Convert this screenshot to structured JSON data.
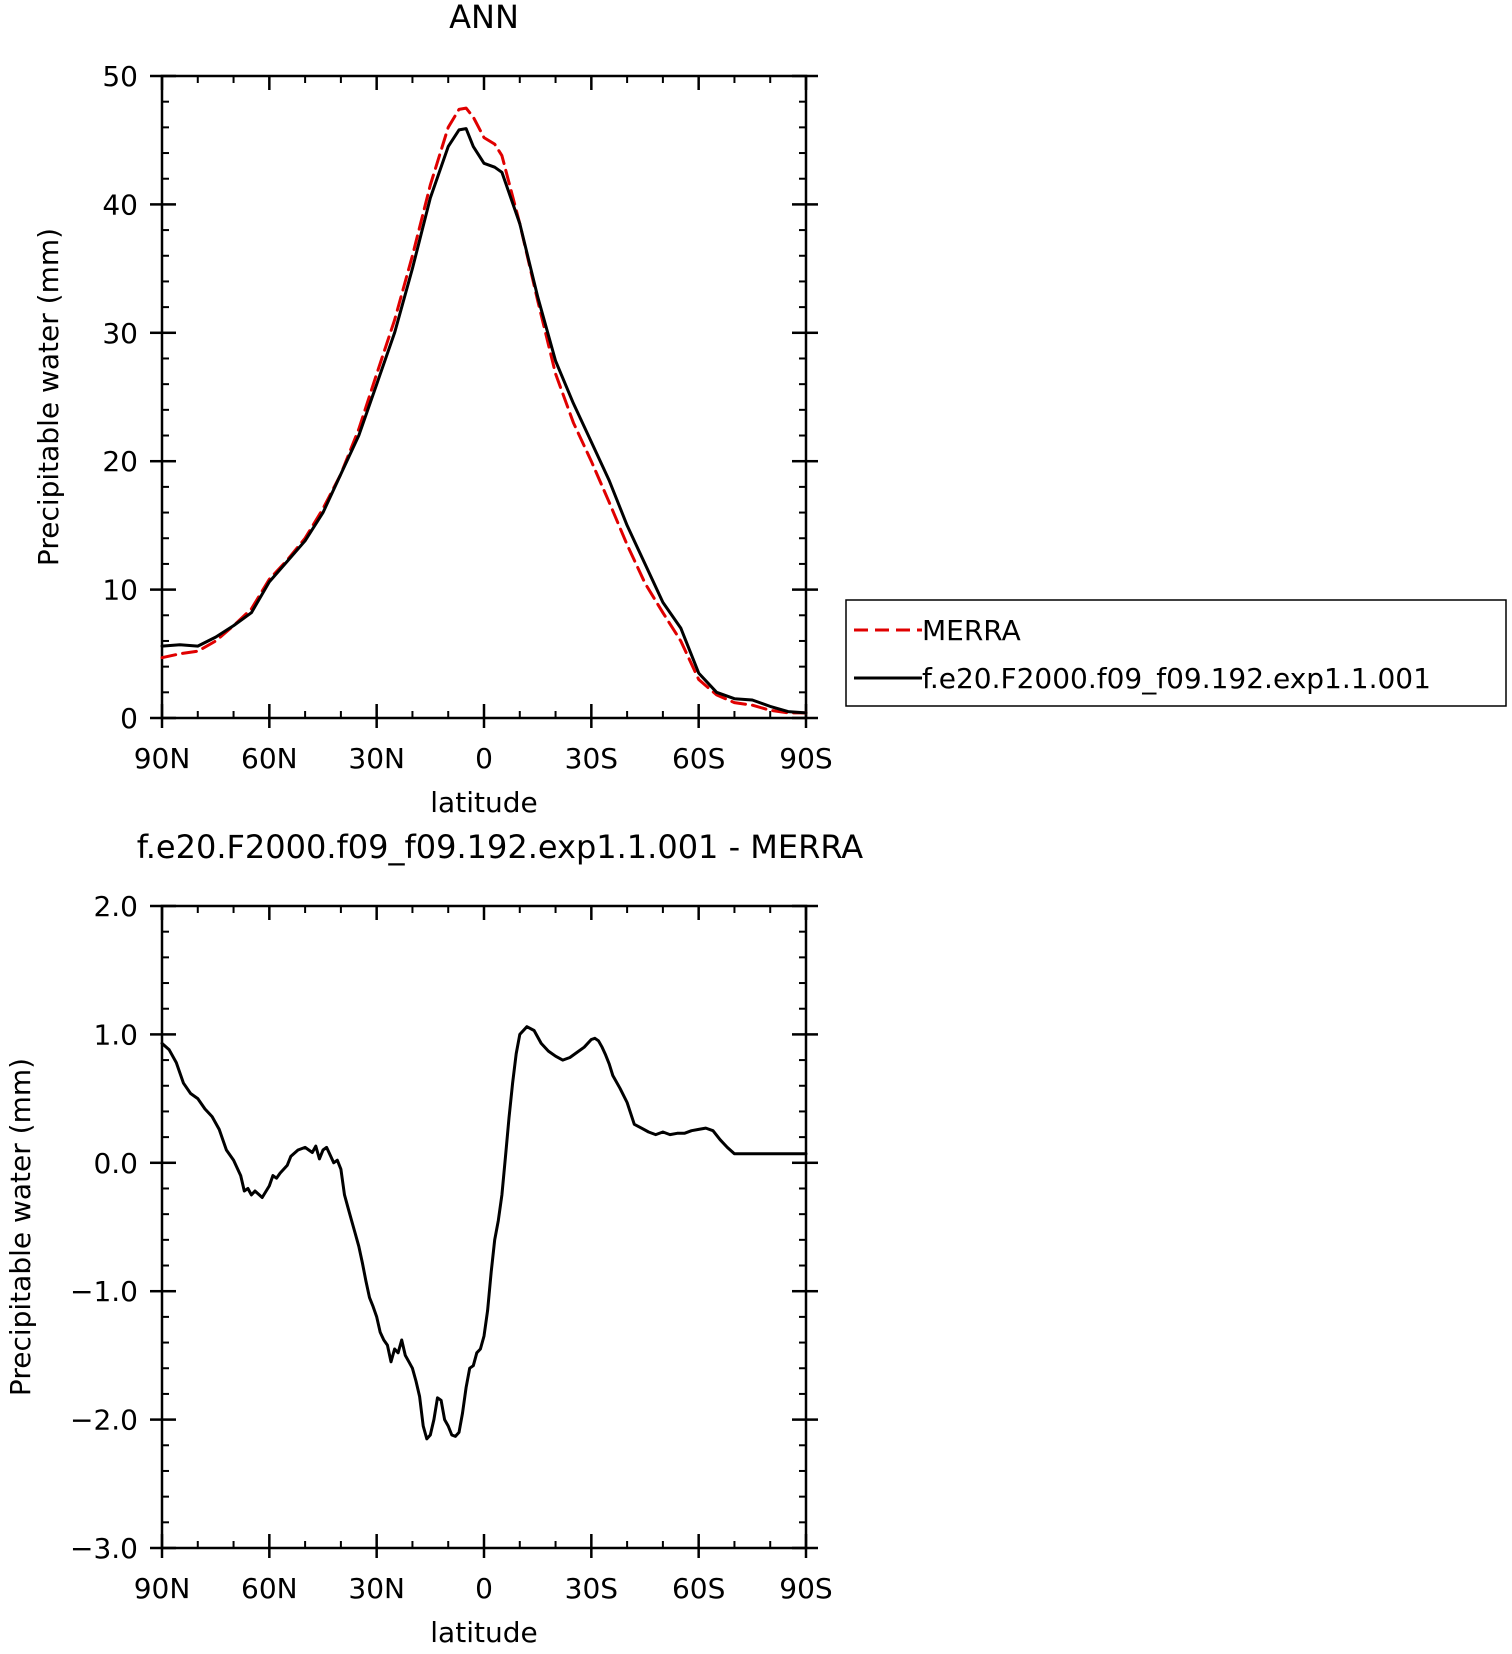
{
  "chart_data": [
    {
      "type": "line",
      "title": "ANN",
      "xlabel": "latitude",
      "ylabel": "Precipitable water (mm)",
      "xlim": [
        90,
        -90
      ],
      "ylim": [
        0,
        50
      ],
      "x_ticks": [
        90,
        60,
        30,
        0,
        -30,
        -60,
        -90
      ],
      "x_tick_labels": [
        "90N",
        "60N",
        "30N",
        "0",
        "30S",
        "60S",
        "90S"
      ],
      "y_ticks": [
        0,
        10,
        20,
        30,
        40,
        50
      ],
      "y_tick_labels": [
        "0",
        "10",
        "20",
        "30",
        "40",
        "50"
      ],
      "grid": false,
      "legend": {
        "placement": "right",
        "entries": [
          "MERRA",
          "f.e20.F2000.f09_f09.192.exp1.1.001"
        ]
      },
      "series": [
        {
          "name": "MERRA",
          "color": "#e00000",
          "style": "dashed",
          "x": [
            90,
            85,
            80,
            75,
            70,
            65,
            60,
            55,
            50,
            45,
            40,
            35,
            30,
            25,
            20,
            15,
            10,
            7,
            5,
            3,
            0,
            -3,
            -5,
            -10,
            -15,
            -20,
            -25,
            -30,
            -35,
            -40,
            -45,
            -50,
            -55,
            -60,
            -65,
            -70,
            -75,
            -80,
            -85,
            -90
          ],
          "y": [
            4.7,
            5.0,
            5.2,
            6.0,
            7.2,
            8.5,
            10.8,
            12.3,
            14.0,
            16.3,
            19.0,
            22.5,
            26.8,
            31.0,
            36.0,
            41.5,
            46.0,
            47.4,
            47.5,
            46.8,
            45.2,
            44.7,
            43.8,
            38.5,
            32.5,
            26.8,
            23.0,
            20.0,
            16.8,
            13.5,
            10.5,
            8.2,
            6.0,
            3.0,
            1.8,
            1.2,
            1.0,
            0.6,
            0.4,
            0.4
          ],
          "_note": ""
        },
        {
          "name": "f.e20.F2000.f09_f09.192.exp1.1.001",
          "color": "#000000",
          "style": "solid",
          "x": [
            90,
            85,
            80,
            75,
            70,
            65,
            60,
            55,
            50,
            45,
            40,
            35,
            30,
            25,
            20,
            15,
            10,
            7,
            5,
            3,
            0,
            -3,
            -5,
            -10,
            -15,
            -20,
            -25,
            -30,
            -35,
            -40,
            -45,
            -50,
            -55,
            -60,
            -65,
            -70,
            -75,
            -80,
            -85,
            -90
          ],
          "y": [
            5.6,
            5.7,
            5.6,
            6.3,
            7.2,
            8.2,
            10.6,
            12.2,
            13.8,
            16.0,
            19.0,
            22.0,
            26.0,
            30.0,
            35.0,
            40.5,
            44.5,
            45.8,
            45.9,
            44.5,
            43.2,
            42.9,
            42.5,
            38.5,
            32.8,
            27.8,
            24.5,
            21.5,
            18.5,
            15.0,
            12.0,
            9.0,
            7.0,
            3.5,
            2.0,
            1.5,
            1.4,
            0.9,
            0.5,
            0.4
          ]
        }
      ]
    },
    {
      "type": "line",
      "title": "f.e20.F2000.f09_f09.192.exp1.1.001 - MERRA",
      "xlabel": "latitude",
      "ylabel": "Precipitable water (mm)",
      "xlim": [
        90,
        -90
      ],
      "ylim": [
        -3.0,
        2.0
      ],
      "x_ticks": [
        90,
        60,
        30,
        0,
        -30,
        -60,
        -90
      ],
      "x_tick_labels": [
        "90N",
        "60N",
        "30N",
        "0",
        "30S",
        "60S",
        "90S"
      ],
      "y_ticks": [
        -3,
        -2,
        -1,
        0,
        1,
        2
      ],
      "y_tick_labels": [
        "−3.0",
        "−2.0",
        "−1.0",
        "0.0",
        "1.0",
        "2.0"
      ],
      "grid": false,
      "series": [
        {
          "color": "#000000",
          "style": "solid",
          "x": [
            90,
            88,
            86,
            84,
            82,
            80,
            78,
            76,
            74,
            72,
            70,
            68,
            67,
            66,
            65,
            64,
            62,
            60,
            59,
            58,
            57,
            55,
            54,
            52,
            50,
            48,
            47,
            46,
            45,
            44,
            43,
            42,
            41,
            40,
            39,
            38,
            37,
            36,
            35,
            34,
            33,
            32,
            31,
            30,
            29,
            28,
            27,
            26,
            25,
            24,
            23,
            22,
            21,
            20,
            19,
            18,
            17,
            16,
            15,
            14,
            13,
            12,
            11,
            10,
            9,
            8,
            7,
            6,
            5,
            4,
            3,
            2,
            1,
            0,
            -1,
            -2,
            -3,
            -4,
            -5,
            -6,
            -7,
            -8,
            -9,
            -10,
            -12,
            -14,
            -16,
            -18,
            -20,
            -22,
            -24,
            -26,
            -28,
            -30,
            -31,
            -32,
            -33,
            -34,
            -35,
            -36,
            -38,
            -40,
            -42,
            -44,
            -46,
            -48,
            -50,
            -52,
            -54,
            -56,
            -58,
            -60,
            -62,
            -64,
            -66,
            -68,
            -70,
            -72,
            -74,
            -76,
            -78,
            -80,
            -82,
            -84,
            -86,
            -88,
            -90
          ],
          "y": [
            0.93,
            0.88,
            0.78,
            0.62,
            0.54,
            0.5,
            0.42,
            0.36,
            0.26,
            0.1,
            0.02,
            -0.1,
            -0.22,
            -0.2,
            -0.25,
            -0.22,
            -0.27,
            -0.18,
            -0.1,
            -0.12,
            -0.08,
            -0.02,
            0.05,
            0.1,
            0.12,
            0.08,
            0.13,
            0.03,
            0.1,
            0.12,
            0.06,
            0.0,
            0.02,
            -0.05,
            -0.25,
            -0.35,
            -0.45,
            -0.55,
            -0.65,
            -0.78,
            -0.92,
            -1.05,
            -1.12,
            -1.2,
            -1.32,
            -1.38,
            -1.42,
            -1.55,
            -1.45,
            -1.48,
            -1.38,
            -1.5,
            -1.55,
            -1.6,
            -1.7,
            -1.82,
            -2.05,
            -2.15,
            -2.12,
            -2.0,
            -1.83,
            -1.85,
            -2.0,
            -2.05,
            -2.12,
            -2.13,
            -2.1,
            -1.95,
            -1.75,
            -1.6,
            -1.58,
            -1.48,
            -1.45,
            -1.35,
            -1.15,
            -0.85,
            -0.6,
            -0.45,
            -0.25,
            0.05,
            0.35,
            0.62,
            0.85,
            1.0,
            1.06,
            1.03,
            0.93,
            0.87,
            0.83,
            0.8,
            0.82,
            0.86,
            0.9,
            0.96,
            0.97,
            0.95,
            0.9,
            0.84,
            0.77,
            0.68,
            0.58,
            0.47,
            0.3,
            0.27,
            0.24,
            0.22,
            0.24,
            0.22,
            0.23,
            0.23,
            0.25,
            0.26,
            0.27,
            0.25,
            0.18,
            0.12,
            0.07,
            0.07,
            0.07,
            0.07,
            0.07,
            0.07,
            0.07,
            0.07,
            0.07,
            0.07,
            0.07
          ]
        }
      ]
    }
  ]
}
